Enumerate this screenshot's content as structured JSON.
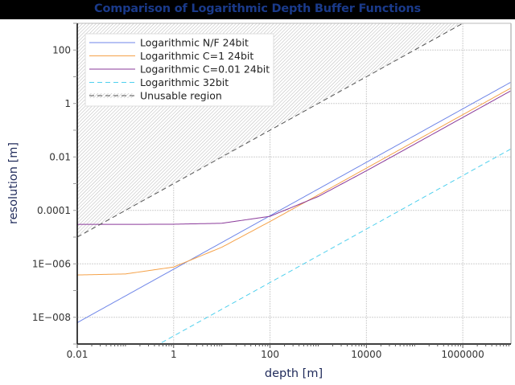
{
  "title": "Comparison of Logarithmic Depth Buffer Functions",
  "chart_data": {
    "type": "line",
    "title": "Comparison of Logarithmic Depth Buffer Functions",
    "xlabel": "depth [m]",
    "ylabel": "resolution [m]",
    "xscale": "log",
    "yscale": "log",
    "xlim": [
      0.01,
      10000000
    ],
    "ylim": [
      1e-09,
      1000
    ],
    "grid": true,
    "legend_position": "upper left",
    "x_ticks": [
      {
        "value": 0.01,
        "label": "0.01"
      },
      {
        "value": 1,
        "label": "1"
      },
      {
        "value": 100,
        "label": "100"
      },
      {
        "value": 10000,
        "label": "10000"
      },
      {
        "value": 1000000,
        "label": "1000000"
      }
    ],
    "y_ticks": [
      {
        "value": 100,
        "label": "100"
      },
      {
        "value": 1,
        "label": "1"
      },
      {
        "value": 0.01,
        "label": "0.01"
      },
      {
        "value": 0.0001,
        "label": "0.0001"
      },
      {
        "value": 1e-06,
        "label": "1E−006"
      },
      {
        "value": 1e-08,
        "label": "1E−008"
      }
    ],
    "x": [
      0.01,
      0.1,
      1,
      10,
      100,
      1000,
      10000,
      100000,
      1000000,
      10000000
    ],
    "series": [
      {
        "name": "Logarithmic N/F 24bit",
        "color": "#6f86e8",
        "dash": "none",
        "values": [
          6.3e-09,
          6.3e-08,
          6.3e-07,
          6.3e-06,
          6.3e-05,
          0.00063,
          0.0063,
          0.063,
          0.63,
          6.3
        ]
      },
      {
        "name": "Logarithmic C=1 24bit",
        "color": "#f5a24a",
        "dash": "none",
        "values": [
          3.84e-07,
          4.18e-07,
          7.6e-07,
          4.18e-06,
          3.84e-05,
          0.00038,
          0.0038,
          0.038,
          0.38,
          3.8
        ]
      },
      {
        "name": "Logarithmic C=0.01 24bit",
        "color": "#8a3a9a",
        "dash": "none",
        "values": [
          3e-05,
          3e-05,
          3.03e-05,
          3.3e-05,
          6e-05,
          0.00033,
          0.00303,
          0.03,
          0.3,
          3.0
        ]
      },
      {
        "name": "Logarithmic 32bit",
        "color": "#4fd0ee",
        "dash": "6,4",
        "values": [
          2e-11,
          2e-10,
          2e-09,
          2e-08,
          2e-07,
          2e-06,
          2e-05,
          0.0002,
          0.002,
          0.02
        ]
      },
      {
        "name": "Unusable region",
        "color": "#555555",
        "dash": "6,4",
        "fill": "hatched-above",
        "values": [
          1e-05,
          0.0001,
          0.001,
          0.01,
          0.1,
          1,
          10,
          100,
          1000,
          10000
        ]
      }
    ]
  },
  "legend": {
    "items": [
      {
        "label": "Logarithmic N/F 24bit"
      },
      {
        "label": "Logarithmic C=1 24bit"
      },
      {
        "label": "Logarithmic C=0.01 24bit"
      },
      {
        "label": "Logarithmic 32bit"
      },
      {
        "label": "Unusable region"
      }
    ]
  },
  "axes": {
    "xlabel": "depth [m]",
    "ylabel": "resolution [m]"
  }
}
